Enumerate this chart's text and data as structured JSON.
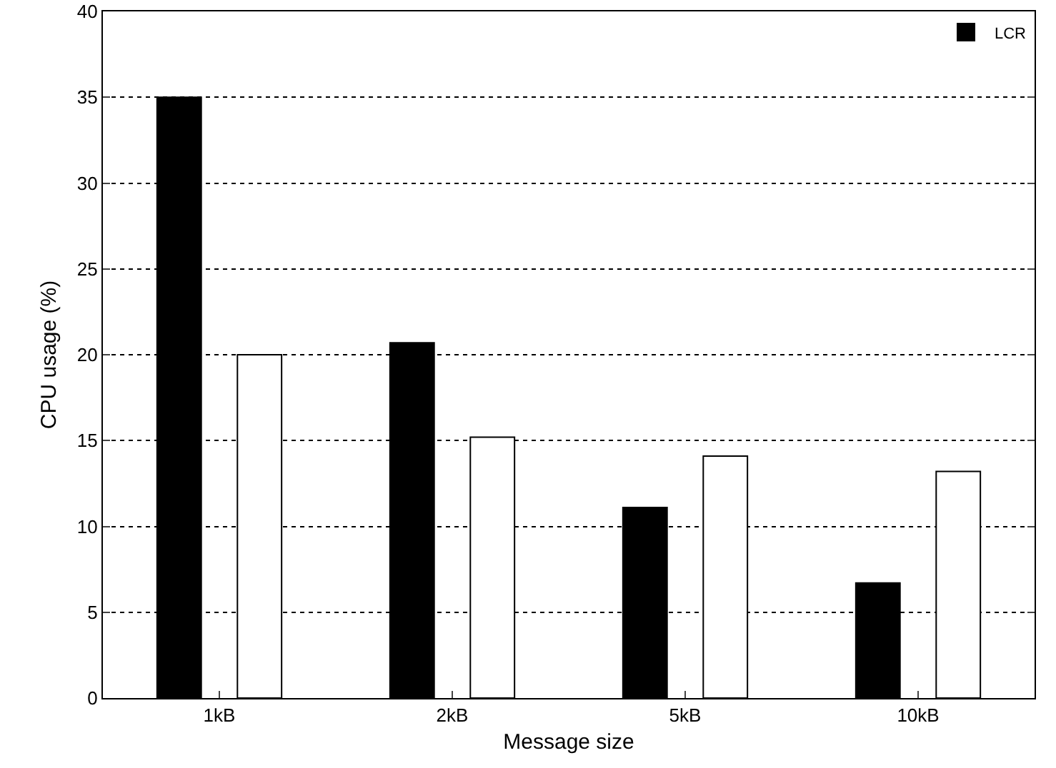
{
  "chart_data": {
    "type": "bar",
    "xlabel": "Message size",
    "ylabel": "CPU usage (%)",
    "categories": [
      "1kB",
      "2kB",
      "5kB",
      "10kB"
    ],
    "series": [
      {
        "name": "LCR",
        "color": "#000000",
        "values": [
          35,
          20.7,
          11.1,
          6.7
        ]
      },
      {
        "color": "#ffffff",
        "values": [
          20,
          15.2,
          14.1,
          13.2
        ]
      }
    ],
    "ylim": [
      0,
      40
    ],
    "yticks": [
      0,
      5,
      10,
      15,
      20,
      25,
      30,
      35,
      40
    ],
    "grid": "y",
    "legend": "top right"
  }
}
